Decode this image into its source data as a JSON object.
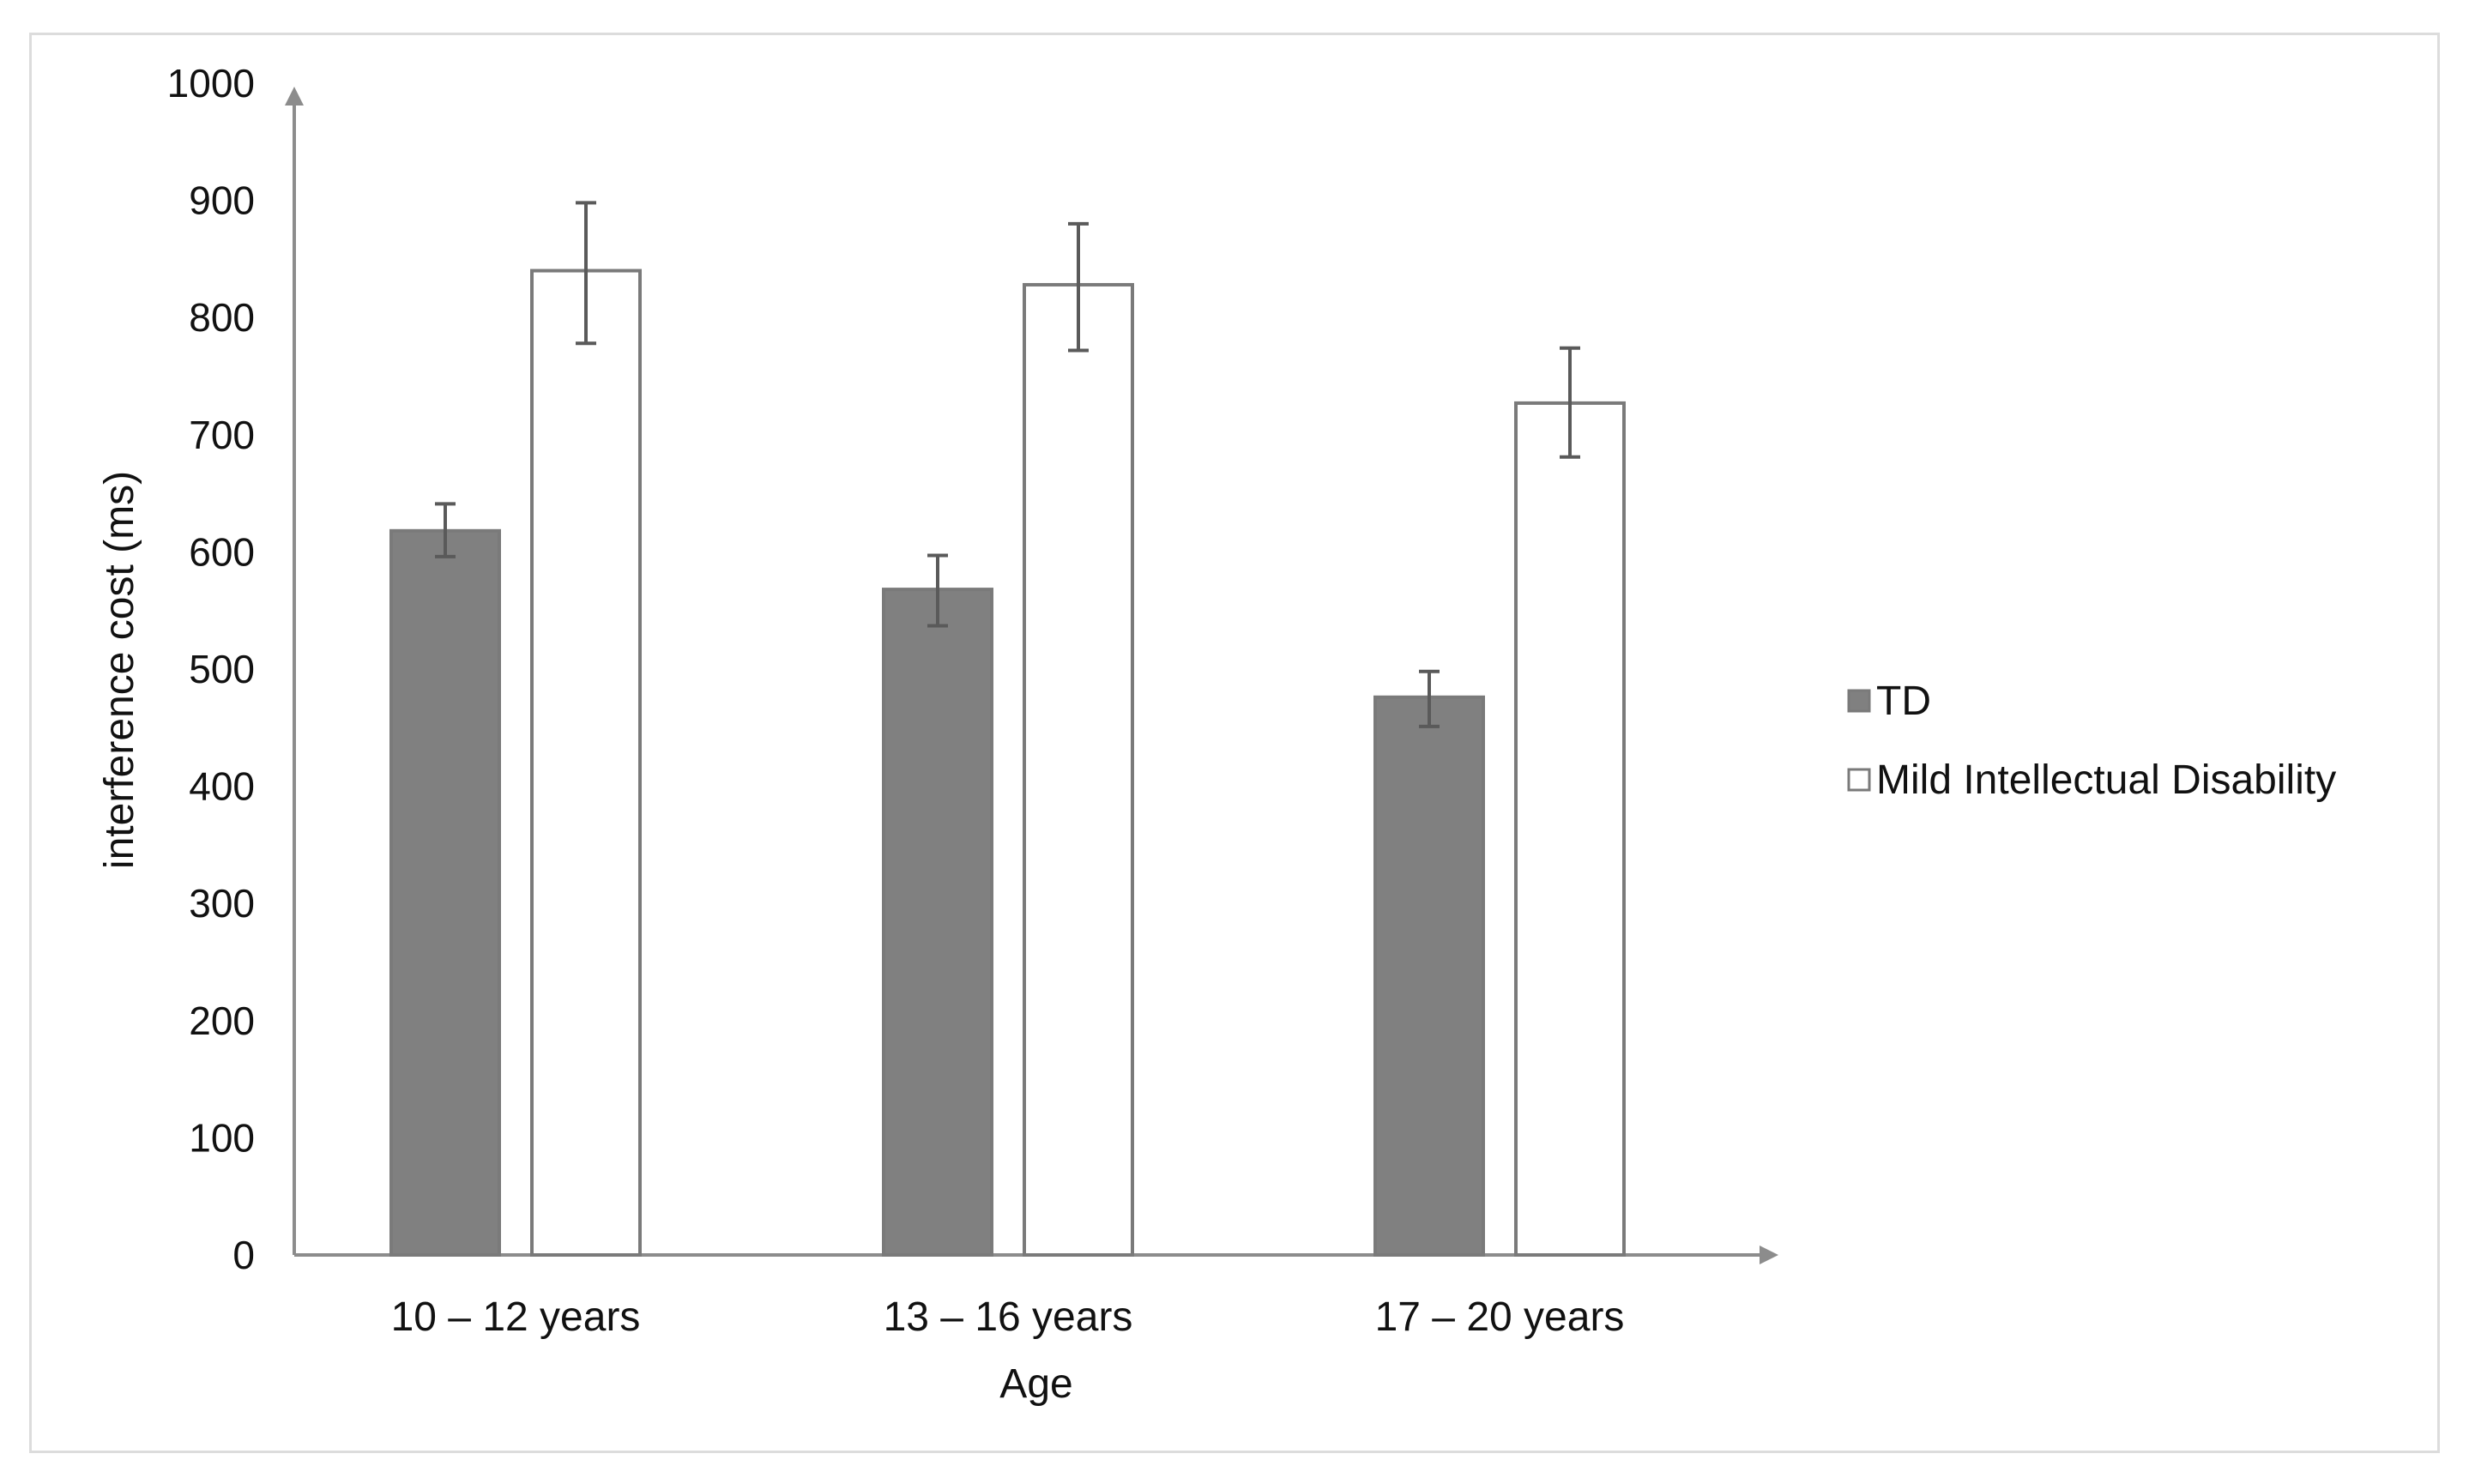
{
  "chart_data": {
    "type": "bar",
    "title": "",
    "xlabel": "Age",
    "ylabel": "interference cost (ms)",
    "categories": [
      "10 – 12 years",
      "13 – 16 years",
      "17 – 20 years"
    ],
    "ylim": [
      0,
      1000
    ],
    "yticks": [
      "0",
      "100",
      "200",
      "300",
      "400",
      "500",
      "600",
      "700",
      "800",
      "900",
      "1000"
    ],
    "grid": false,
    "legend_position": "right",
    "series": [
      {
        "name": "TD",
        "values": [
          618,
          568,
          476
        ],
        "error_low": [
          596,
          537,
          451
        ],
        "error_high": [
          641,
          597,
          498
        ],
        "color": "#808080"
      },
      {
        "name": "Mild Intellectual Disability",
        "values": [
          840,
          828,
          727
        ],
        "error_low": [
          778,
          772,
          681
        ],
        "error_high": [
          898,
          880,
          774
        ],
        "color": "#ffffff"
      }
    ],
    "axis_color": "#8c8c8c",
    "outline_color": "#7a7a7a"
  }
}
